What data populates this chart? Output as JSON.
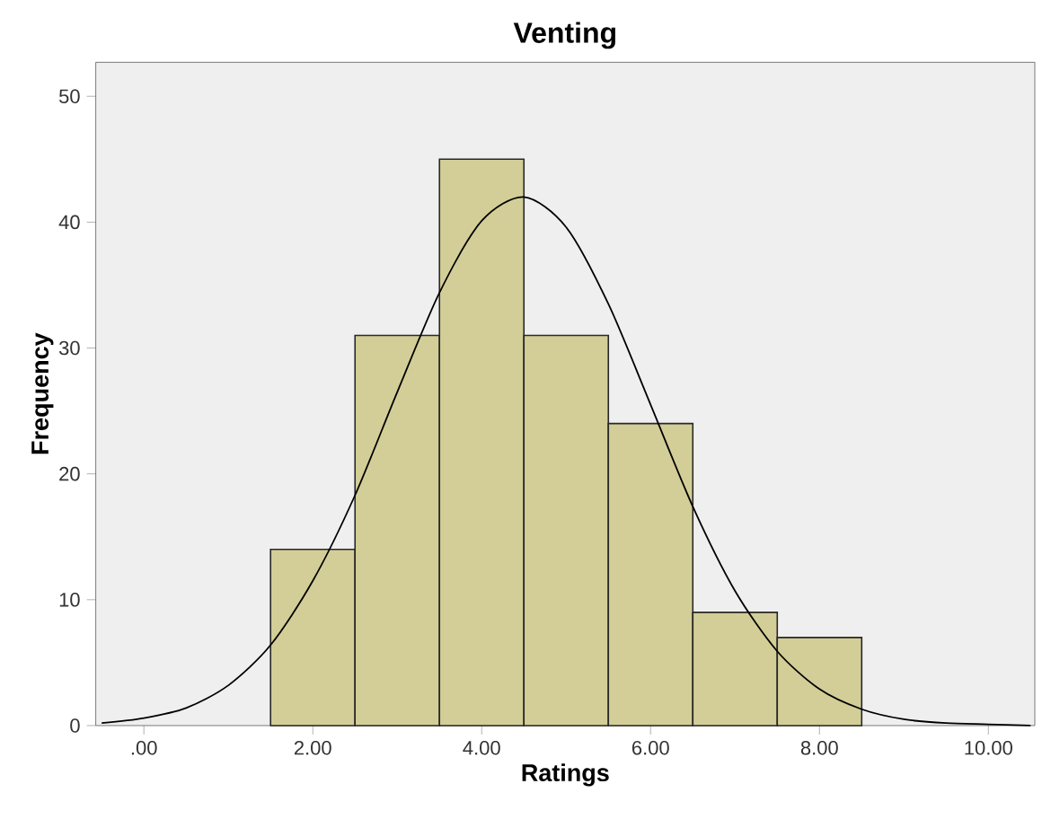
{
  "chart_data": {
    "type": "histogram",
    "title": "Venting",
    "xlabel": "Ratings",
    "ylabel": "Frequency",
    "bins": [
      1.5,
      2.5,
      3.5,
      4.5,
      5.5,
      6.5,
      7.5,
      8.5
    ],
    "values": [
      14,
      31,
      45,
      31,
      24,
      9,
      7
    ],
    "color": "#d3ce97",
    "series": [
      {
        "type": "line",
        "color": "#000000",
        "x": [
          -0.5,
          0,
          0.5,
          1,
          1.5,
          2,
          2.5,
          3,
          3.5,
          4,
          4.5,
          5,
          5.5,
          6,
          6.5,
          7,
          7.5,
          8,
          8.5,
          9,
          9.5,
          10,
          10.5
        ],
        "values": [
          0.2,
          0.6,
          1.4,
          3.2,
          6.4,
          11.5,
          18.3,
          26.5,
          34.4,
          40.1,
          42,
          39.6,
          33.5,
          25.5,
          17.4,
          10.7,
          5.9,
          2.9,
          1.3,
          0.5,
          0.2,
          0.1,
          0
        ]
      }
    ],
    "xlim": [
      -0.57,
      10.55
    ],
    "ylim": [
      0,
      52.7
    ],
    "xticks": [
      {
        "value": 0,
        "label": ".00"
      },
      {
        "value": 2,
        "label": "2.00"
      },
      {
        "value": 4,
        "label": "4.00"
      },
      {
        "value": 6,
        "label": "6.00"
      },
      {
        "value": 8,
        "label": "8.00"
      },
      {
        "value": 10,
        "label": "10.00"
      }
    ],
    "yticks": [
      0,
      10,
      20,
      30,
      40,
      50
    ],
    "grid": false
  }
}
